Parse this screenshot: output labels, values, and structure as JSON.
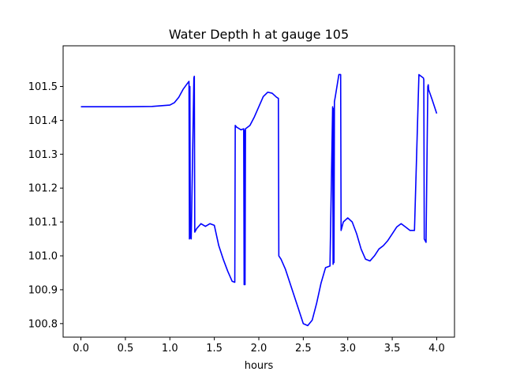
{
  "chart_data": {
    "type": "line",
    "title": "Water Depth h at gauge 105",
    "xlabel": "hours",
    "ylabel": "",
    "xlim": [
      -0.2,
      4.2
    ],
    "ylim": [
      100.76,
      101.62
    ],
    "grid": false,
    "xticks": [
      0.0,
      0.5,
      1.0,
      1.5,
      2.0,
      2.5,
      3.0,
      3.5,
      4.0
    ],
    "xtick_labels": [
      "0.0",
      "0.5",
      "1.0",
      "1.5",
      "2.0",
      "2.5",
      "3.0",
      "3.5",
      "4.0"
    ],
    "yticks": [
      100.8,
      100.9,
      101.0,
      101.1,
      101.2,
      101.3,
      101.4,
      101.5
    ],
    "ytick_labels": [
      "100.8",
      "100.9",
      "101.0",
      "101.1",
      "101.2",
      "101.3",
      "101.4",
      "101.5"
    ],
    "series": [
      {
        "color": "#0000ff",
        "x": [
          0.0,
          0.5,
          0.8,
          1.0,
          1.05,
          1.1,
          1.15,
          1.2,
          1.215,
          1.22,
          1.225,
          1.23,
          1.24,
          1.27,
          1.275,
          1.28,
          1.3,
          1.35,
          1.4,
          1.45,
          1.5,
          1.55,
          1.6,
          1.65,
          1.7,
          1.73,
          1.735,
          1.75,
          1.8,
          1.83,
          1.835,
          1.84,
          1.845,
          1.85,
          1.9,
          1.95,
          2.0,
          2.05,
          2.1,
          2.15,
          2.2,
          2.22,
          2.225,
          2.25,
          2.3,
          2.35,
          2.4,
          2.45,
          2.5,
          2.55,
          2.6,
          2.65,
          2.7,
          2.75,
          2.8,
          2.83,
          2.835,
          2.84,
          2.845,
          2.85,
          2.86,
          2.9,
          2.92,
          2.925,
          2.95,
          3.0,
          3.05,
          3.1,
          3.15,
          3.2,
          3.25,
          3.3,
          3.35,
          3.4,
          3.45,
          3.5,
          3.55,
          3.6,
          3.65,
          3.7,
          3.75,
          3.8,
          3.85,
          3.855,
          3.86,
          3.88,
          3.9,
          3.905,
          3.91,
          3.95,
          4.0
        ],
        "y": [
          101.44,
          101.44,
          101.441,
          101.445,
          101.452,
          101.468,
          101.492,
          101.51,
          101.515,
          101.05,
          101.5,
          101.055,
          101.05,
          101.525,
          101.53,
          101.07,
          101.08,
          101.095,
          101.087,
          101.095,
          101.09,
          101.03,
          100.99,
          100.955,
          100.925,
          100.922,
          101.385,
          101.38,
          101.372,
          101.375,
          100.915,
          101.37,
          100.915,
          101.375,
          101.385,
          101.41,
          101.44,
          101.47,
          101.483,
          101.48,
          101.468,
          101.465,
          101.0,
          100.99,
          100.96,
          100.92,
          100.88,
          100.84,
          100.8,
          100.794,
          100.81,
          100.86,
          100.92,
          100.965,
          100.97,
          101.44,
          100.975,
          101.435,
          100.98,
          101.455,
          101.47,
          101.535,
          101.535,
          101.075,
          101.1,
          101.112,
          101.1,
          101.065,
          101.02,
          100.99,
          100.985,
          101.0,
          101.02,
          101.03,
          101.045,
          101.065,
          101.085,
          101.095,
          101.085,
          101.075,
          101.075,
          101.535,
          101.525,
          101.52,
          101.05,
          101.04,
          101.5,
          101.505,
          101.49,
          101.46,
          101.42
        ]
      }
    ]
  }
}
